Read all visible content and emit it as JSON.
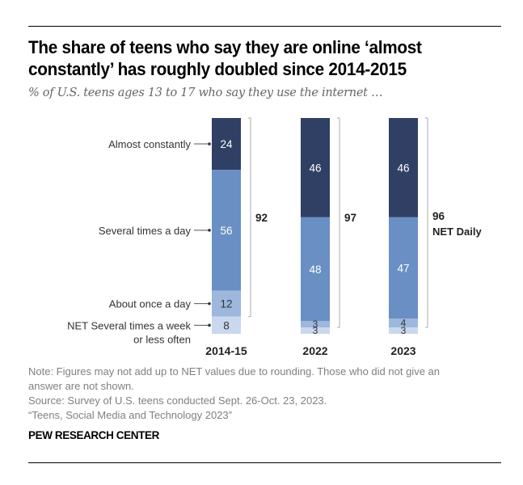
{
  "header": {
    "title": "The share of teens who say they are online ‘almost constantly’ has roughly doubled since 2014-2015",
    "subtitle": "% of U.S. teens ages 13 to 17 who say they use the internet …"
  },
  "chart_data": {
    "type": "bar",
    "stacked": true,
    "orientation": "vertical",
    "title": "The share of teens who say they are online ‘almost constantly’ has roughly doubled since 2014-2015",
    "subtitle": "% of U.S. teens ages 13 to 17 who say they use the internet …",
    "categories": [
      "2014-15",
      "2022",
      "2023"
    ],
    "series": [
      {
        "name": "Almost constantly",
        "values": [
          24,
          46,
          46
        ],
        "color": "#2f4064",
        "label_color": "#ffffff"
      },
      {
        "name": "Several times a day",
        "values": [
          56,
          48,
          47
        ],
        "color": "#6a8fc4",
        "label_color": "#ffffff"
      },
      {
        "name": "About once a day",
        "values": [
          12,
          3,
          4
        ],
        "color": "#9db7dd",
        "label_color": "#333333"
      },
      {
        "name": "NET Several times a week or less often",
        "values": [
          8,
          3,
          3
        ],
        "color": "#c9d8ee",
        "label_color": "#333333"
      }
    ],
    "series_labels_display": [
      "Almost constantly",
      "Several times a day",
      "About once a day",
      "NET Several times a week\nor less often"
    ],
    "net_daily": {
      "values": [
        92,
        97,
        96
      ],
      "label": "NET Daily"
    },
    "ylim": [
      0,
      100
    ],
    "xlabel": "",
    "ylabel": "",
    "grid": false,
    "legend": "left"
  },
  "footer": {
    "note_line1": "Note: Figures may not add up to NET values due to rounding. Those who did not give an",
    "note_line2": "answer are not shown.",
    "source": "Source: Survey of U.S. teens conducted Sept. 26-Oct. 23, 2023.",
    "report": "“Teens, Social Media and Technology 2023”",
    "brand": "PEW RESEARCH CENTER"
  }
}
